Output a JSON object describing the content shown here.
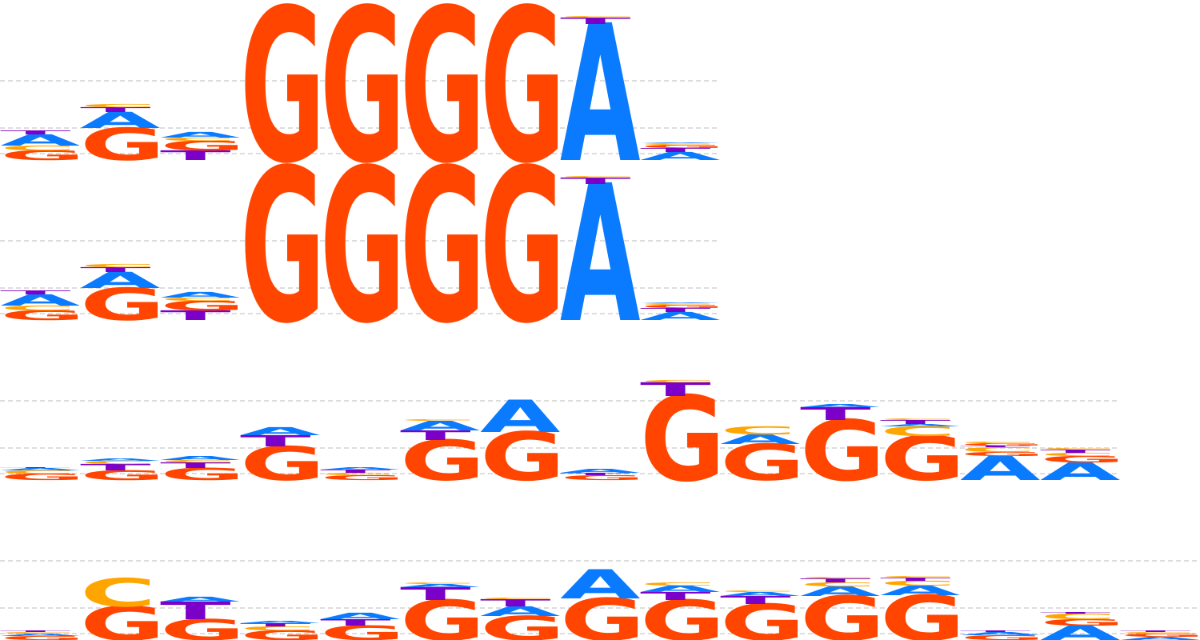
{
  "colors": {
    "A": "#0a7bff",
    "C": "#ffa500",
    "G": "#ff4500",
    "T": "#7b00c8",
    "grid": "#bbbbbb"
  },
  "logos": [
    {
      "name": "logo-1",
      "columns": [
        [
          [
            "G",
            0.12
          ],
          [
            "C",
            0.06
          ],
          [
            "A",
            0.14
          ],
          [
            "T",
            0.05
          ]
        ],
        [
          [
            "G",
            0.4
          ],
          [
            "A",
            0.2
          ],
          [
            "T",
            0.06
          ],
          [
            "C",
            0.04
          ]
        ],
        [
          [
            "T",
            0.12
          ],
          [
            "G",
            0.12
          ],
          [
            "C",
            0.04
          ],
          [
            "A",
            0.07
          ]
        ],
        [
          [
            "G",
            1.9
          ]
        ],
        [
          [
            "G",
            1.9
          ]
        ],
        [
          [
            "G",
            1.9
          ]
        ],
        [
          [
            "G",
            1.9
          ]
        ],
        [
          [
            "A",
            1.7
          ],
          [
            "T",
            0.08
          ],
          [
            "C",
            0.02
          ]
        ],
        [
          [
            "A",
            0.1
          ],
          [
            "T",
            0.05
          ],
          [
            "G",
            0.04
          ],
          [
            "C",
            0.02
          ],
          [
            "A",
            0.01
          ]
        ]
      ]
    },
    {
      "name": "logo-2",
      "columns": [
        [
          [
            "G",
            0.12
          ],
          [
            "C",
            0.06
          ],
          [
            "A",
            0.14
          ],
          [
            "T",
            0.05
          ]
        ],
        [
          [
            "G",
            0.4
          ],
          [
            "A",
            0.2
          ],
          [
            "T",
            0.06
          ],
          [
            "C",
            0.04
          ]
        ],
        [
          [
            "T",
            0.12
          ],
          [
            "G",
            0.12
          ],
          [
            "C",
            0.04
          ],
          [
            "A",
            0.07
          ]
        ],
        [
          [
            "G",
            1.9
          ]
        ],
        [
          [
            "G",
            1.9
          ]
        ],
        [
          [
            "G",
            1.9
          ]
        ],
        [
          [
            "G",
            1.9
          ]
        ],
        [
          [
            "A",
            1.7
          ],
          [
            "T",
            0.08
          ],
          [
            "C",
            0.02
          ]
        ],
        [
          [
            "A",
            0.1
          ],
          [
            "T",
            0.05
          ],
          [
            "G",
            0.04
          ],
          [
            "C",
            0.02
          ],
          [
            "A",
            0.01
          ]
        ]
      ]
    },
    {
      "name": "logo-3",
      "columns": [
        [
          [
            "G",
            0.08
          ],
          [
            "C",
            0.04
          ],
          [
            "A",
            0.03
          ],
          [
            "T",
            0.01
          ]
        ],
        [
          [
            "G",
            0.12
          ],
          [
            "T",
            0.08
          ],
          [
            "C",
            0.04
          ],
          [
            "A",
            0.03
          ]
        ],
        [
          [
            "G",
            0.15
          ],
          [
            "T",
            0.07
          ],
          [
            "C",
            0.03
          ],
          [
            "A",
            0.05
          ]
        ],
        [
          [
            "G",
            0.42
          ],
          [
            "T",
            0.14
          ],
          [
            "A",
            0.1
          ]
        ],
        [
          [
            "G",
            0.06
          ],
          [
            "C",
            0.03
          ],
          [
            "T",
            0.04
          ],
          [
            "A",
            0.03
          ]
        ],
        [
          [
            "G",
            0.5
          ],
          [
            "T",
            0.12
          ],
          [
            "A",
            0.12
          ],
          [
            "C",
            0.02
          ]
        ],
        [
          [
            "G",
            0.6
          ],
          [
            "A",
            0.4
          ]
        ],
        [
          [
            "G",
            0.06
          ],
          [
            "T",
            0.03
          ],
          [
            "A",
            0.05
          ]
        ],
        [
          [
            "G",
            1.05
          ],
          [
            "T",
            0.17
          ],
          [
            "C",
            0.03
          ]
        ],
        [
          [
            "G",
            0.45
          ],
          [
            "A",
            0.12
          ],
          [
            "C",
            0.1
          ]
        ],
        [
          [
            "G",
            0.75
          ],
          [
            "T",
            0.16
          ],
          [
            "A",
            0.04
          ]
        ],
        [
          [
            "G",
            0.55
          ],
          [
            "C",
            0.12
          ],
          [
            "A",
            0.03
          ],
          [
            "T",
            0.05
          ],
          [
            "C",
            0.02
          ]
        ],
        [
          [
            "A",
            0.3
          ],
          [
            "G",
            0.05
          ],
          [
            "C",
            0.06
          ],
          [
            "T",
            0.02
          ],
          [
            "G",
            0.03
          ],
          [
            "C",
            0.02
          ]
        ],
        [
          [
            "A",
            0.22
          ],
          [
            "G",
            0.08
          ],
          [
            "C",
            0.04
          ],
          [
            "T",
            0.04
          ],
          [
            "C",
            0.02
          ]
        ]
      ]
    },
    {
      "name": "logo-4",
      "columns": [
        [
          [
            "G",
            0.05
          ],
          [
            "A",
            0.03
          ],
          [
            "C",
            0.02
          ],
          [
            "T",
            0.02
          ]
        ],
        [
          [
            "G",
            0.42
          ],
          [
            "C",
            0.35
          ]
        ],
        [
          [
            "G",
            0.26
          ],
          [
            "T",
            0.22
          ],
          [
            "A",
            0.06
          ]
        ],
        [
          [
            "G",
            0.12
          ],
          [
            "C",
            0.05
          ],
          [
            "T",
            0.04
          ],
          [
            "A",
            0.03
          ]
        ],
        [
          [
            "G",
            0.18
          ],
          [
            "T",
            0.08
          ],
          [
            "A",
            0.08
          ]
        ],
        [
          [
            "G",
            0.5
          ],
          [
            "T",
            0.16
          ],
          [
            "A",
            0.04
          ],
          [
            "C",
            0.02
          ]
        ],
        [
          [
            "G",
            0.3
          ],
          [
            "A",
            0.12
          ],
          [
            "T",
            0.09
          ],
          [
            "C",
            0.02
          ]
        ],
        [
          [
            "G",
            0.52
          ],
          [
            "A",
            0.36
          ]
        ],
        [
          [
            "G",
            0.5
          ],
          [
            "T",
            0.1
          ],
          [
            "A",
            0.08
          ],
          [
            "C",
            0.04
          ]
        ],
        [
          [
            "G",
            0.45
          ],
          [
            "T",
            0.1
          ],
          [
            "A",
            0.05
          ],
          [
            "C",
            0.02
          ]
        ],
        [
          [
            "G",
            0.55
          ],
          [
            "A",
            0.12
          ],
          [
            "C",
            0.05
          ],
          [
            "T",
            0.05
          ],
          [
            "C",
            0.02
          ]
        ],
        [
          [
            "G",
            0.56
          ],
          [
            "A",
            0.12
          ],
          [
            "C",
            0.06
          ],
          [
            "T",
            0.04
          ],
          [
            "C",
            0.02
          ]
        ],
        [
          [
            "G",
            0.06
          ],
          [
            "A",
            0.04
          ],
          [
            "T",
            0.02
          ]
        ],
        [
          [
            "A",
            0.18
          ],
          [
            "G",
            0.08
          ],
          [
            "C",
            0.07
          ],
          [
            "T",
            0.02
          ]
        ],
        [
          [
            "A",
            0.04
          ],
          [
            "G",
            0.04
          ],
          [
            "C",
            0.02
          ],
          [
            "T",
            0.02
          ]
        ]
      ]
    }
  ]
}
